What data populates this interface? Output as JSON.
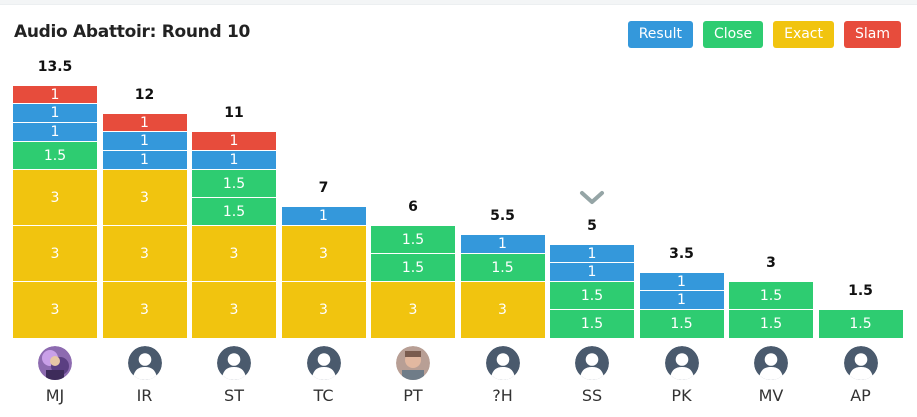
{
  "title": "Audio Abattoir: Round 10",
  "legend": [
    {
      "label": "Result",
      "color": "#3498db"
    },
    {
      "label": "Close",
      "color": "#2ecc71"
    },
    {
      "label": "Exact",
      "color": "#f1c40f"
    },
    {
      "label": "Slam",
      "color": "#e74c3c"
    }
  ],
  "colors": {
    "Result": "#3498db",
    "Close": "#2ecc71",
    "Exact": "#f1c40f",
    "Slam": "#e74c3c"
  },
  "selected_player": "SS",
  "chart_data": {
    "type": "bar",
    "categories": [
      "MJ",
      "IR",
      "ST",
      "TC",
      "PT",
      "?H",
      "SS",
      "PK",
      "MV",
      "AP"
    ],
    "totals": [
      "13.5",
      "12",
      "11",
      "7",
      "6",
      "5.5",
      "5",
      "3.5",
      "3",
      "1.5"
    ],
    "columns": [
      {
        "player": "MJ",
        "total": "13.5",
        "avatar": "photo-1",
        "segments": [
          {
            "kind": "Exact",
            "label": "3"
          },
          {
            "kind": "Exact",
            "label": "3"
          },
          {
            "kind": "Exact",
            "label": "3"
          },
          {
            "kind": "Close",
            "label": "1.5"
          },
          {
            "kind": "Result",
            "label": "1"
          },
          {
            "kind": "Result",
            "label": "1"
          },
          {
            "kind": "Slam",
            "label": "1"
          }
        ]
      },
      {
        "player": "IR",
        "total": "12",
        "avatar": "default-user-icon",
        "segments": [
          {
            "kind": "Exact",
            "label": "3"
          },
          {
            "kind": "Exact",
            "label": "3"
          },
          {
            "kind": "Exact",
            "label": "3"
          },
          {
            "kind": "Result",
            "label": "1"
          },
          {
            "kind": "Result",
            "label": "1"
          },
          {
            "kind": "Slam",
            "label": "1"
          }
        ]
      },
      {
        "player": "ST",
        "total": "11",
        "avatar": "default-user-icon",
        "segments": [
          {
            "kind": "Exact",
            "label": "3"
          },
          {
            "kind": "Exact",
            "label": "3"
          },
          {
            "kind": "Close",
            "label": "1.5"
          },
          {
            "kind": "Close",
            "label": "1.5"
          },
          {
            "kind": "Result",
            "label": "1"
          },
          {
            "kind": "Slam",
            "label": "1"
          }
        ]
      },
      {
        "player": "TC",
        "total": "7",
        "avatar": "default-user-icon",
        "segments": [
          {
            "kind": "Exact",
            "label": "3"
          },
          {
            "kind": "Exact",
            "label": "3"
          },
          {
            "kind": "Result",
            "label": "1"
          }
        ]
      },
      {
        "player": "PT",
        "total": "6",
        "avatar": "photo-2",
        "segments": [
          {
            "kind": "Exact",
            "label": "3"
          },
          {
            "kind": "Close",
            "label": "1.5"
          },
          {
            "kind": "Close",
            "label": "1.5"
          }
        ]
      },
      {
        "player": "?H",
        "total": "5.5",
        "avatar": "default-user-icon",
        "segments": [
          {
            "kind": "Exact",
            "label": "3"
          },
          {
            "kind": "Close",
            "label": "1.5"
          },
          {
            "kind": "Result",
            "label": "1"
          }
        ]
      },
      {
        "player": "SS",
        "total": "5",
        "avatar": "default-user-icon",
        "segments": [
          {
            "kind": "Close",
            "label": "1.5"
          },
          {
            "kind": "Close",
            "label": "1.5"
          },
          {
            "kind": "Result",
            "label": "1"
          },
          {
            "kind": "Result",
            "label": "1"
          }
        ]
      },
      {
        "player": "PK",
        "total": "3.5",
        "avatar": "default-user-icon",
        "segments": [
          {
            "kind": "Close",
            "label": "1.5"
          },
          {
            "kind": "Result",
            "label": "1"
          },
          {
            "kind": "Result",
            "label": "1"
          }
        ]
      },
      {
        "player": "MV",
        "total": "3",
        "avatar": "default-user-icon",
        "segments": [
          {
            "kind": "Close",
            "label": "1.5"
          },
          {
            "kind": "Close",
            "label": "1.5"
          }
        ]
      },
      {
        "player": "AP",
        "total": "1.5",
        "avatar": "default-user-icon",
        "segments": [
          {
            "kind": "Close",
            "label": "1.5"
          }
        ]
      }
    ]
  }
}
